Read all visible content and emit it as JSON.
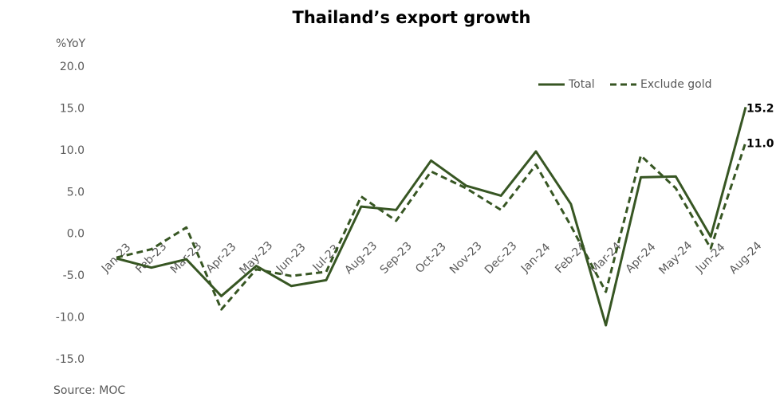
{
  "chart_data": {
    "type": "line",
    "title": "Thailand’s export growth",
    "y_label": "%YoY",
    "source": "Source: MOC",
    "categories": [
      "Jan-23",
      "Feb-23",
      "Mar-23",
      "Apr-23",
      "May-23",
      "Jun-23",
      "Jul-23",
      "Aug-23",
      "Sep-23",
      "Oct-23",
      "Nov-23",
      "Dec-23",
      "Jan-24",
      "Feb-24",
      "Mar-24",
      "Apr-24",
      "May-24",
      "Jun-24",
      "Aug-24"
    ],
    "series": [
      {
        "name": "Total",
        "color": "#375623",
        "dash": false,
        "values": [
          -2.9,
          -4.0,
          -3.0,
          -7.4,
          -3.8,
          -6.2,
          -5.5,
          3.3,
          2.9,
          8.8,
          5.8,
          4.6,
          9.9,
          3.6,
          -10.9,
          6.8,
          6.9,
          -0.3,
          15.2
        ],
        "value_labels": [
          null,
          null,
          null,
          null,
          null,
          null,
          null,
          null,
          null,
          null,
          null,
          null,
          null,
          null,
          null,
          null,
          null,
          null,
          "15.2"
        ]
      },
      {
        "name": "Exclude gold",
        "color": "#375623",
        "dash": true,
        "values": [
          -2.8,
          -1.8,
          0.8,
          -9.0,
          -4.2,
          -5.0,
          -4.5,
          4.5,
          1.6,
          7.5,
          5.5,
          2.9,
          8.3,
          1.0,
          -6.9,
          9.4,
          5.5,
          -1.7,
          11.0
        ],
        "value_labels": [
          null,
          null,
          null,
          null,
          null,
          null,
          null,
          null,
          null,
          null,
          null,
          null,
          null,
          null,
          null,
          null,
          null,
          null,
          "11.0"
        ]
      }
    ],
    "ylim": [
      -15,
      20
    ],
    "yticks": [
      {
        "value": -15,
        "label": "-15.0"
      },
      {
        "value": -10,
        "label": "-10.0"
      },
      {
        "value": -5,
        "label": "-5.0"
      },
      {
        "value": 0,
        "label": "0.0"
      },
      {
        "value": 5,
        "label": "5.0"
      },
      {
        "value": 10,
        "label": "10.0"
      },
      {
        "value": 15,
        "label": "15.0"
      },
      {
        "value": 20,
        "label": "20.0"
      }
    ],
    "grid": false,
    "legend": "top-right"
  }
}
